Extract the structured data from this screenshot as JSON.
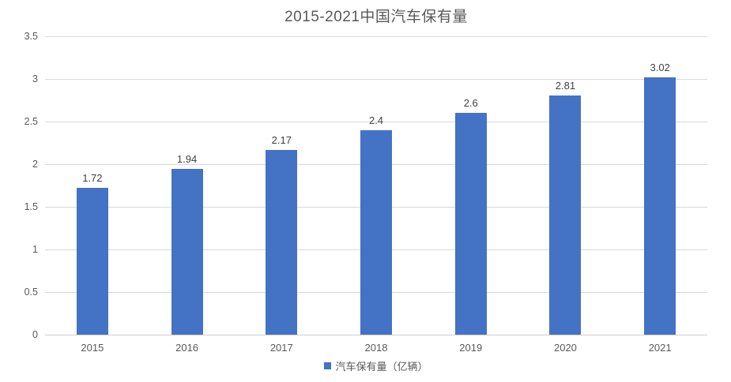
{
  "chart": {
    "title": "2015-2021中国汽车保有量",
    "legend_label": "汽车保有量（亿辆）"
  },
  "chart_data": {
    "type": "bar",
    "title": "2015-2021中国汽车保有量",
    "categories": [
      "2015",
      "2016",
      "2017",
      "2018",
      "2019",
      "2020",
      "2021"
    ],
    "values": [
      1.72,
      1.94,
      2.17,
      2.4,
      2.6,
      2.81,
      3.02
    ],
    "data_labels": [
      "1.72",
      "1.94",
      "2.17",
      "2.4",
      "2.6",
      "2.81",
      "3.02"
    ],
    "xlabel": "",
    "ylabel": "",
    "ylim": [
      0,
      3.5
    ],
    "ytick_step": 0.5,
    "ytick_labels": [
      "0",
      "0.5",
      "1",
      "1.5",
      "2",
      "2.5",
      "3",
      "3.5"
    ],
    "grid": true,
    "legend": [
      "汽车保有量（亿辆）"
    ],
    "legend_position": "bottom",
    "colors": {
      "bar": "#4472C4",
      "title_text": "#595959",
      "axis_text": "#595959",
      "value_label_text": "#404040",
      "gridline": "#d9d9d9",
      "background": "#ffffff"
    }
  }
}
